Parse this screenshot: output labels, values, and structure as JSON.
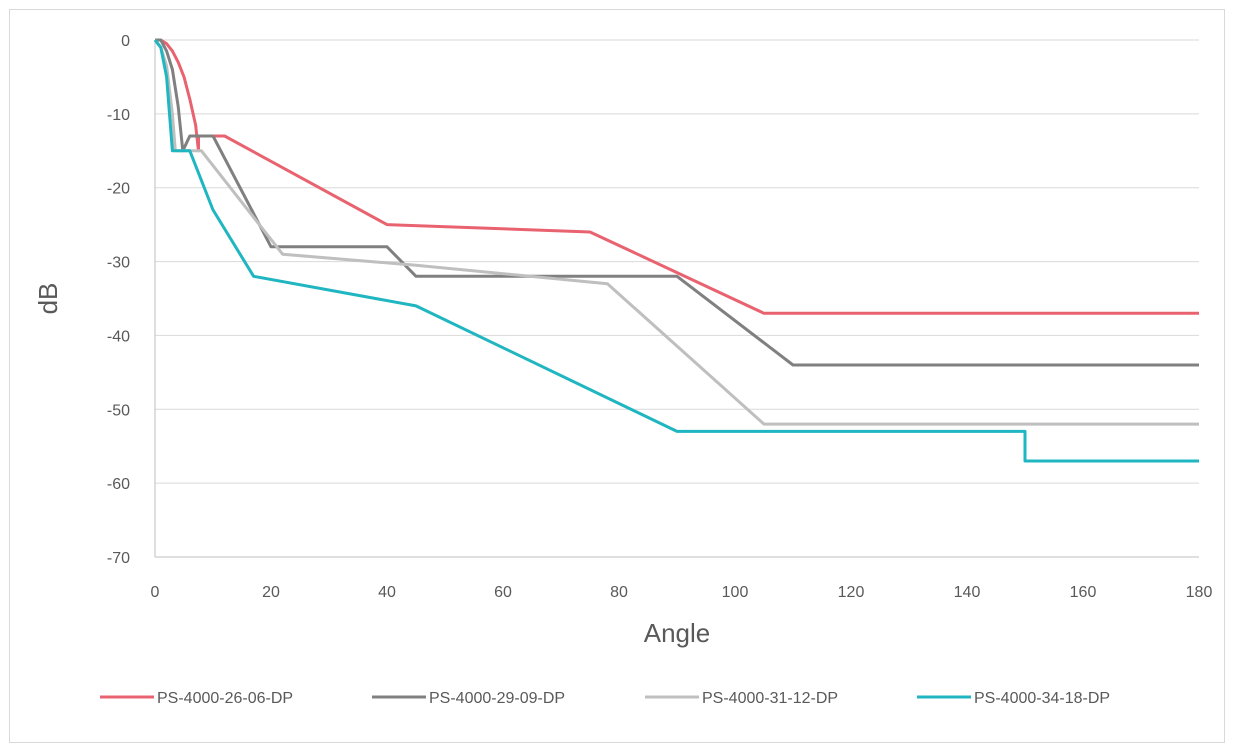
{
  "chart_data": {
    "type": "line",
    "title": "",
    "xlabel": "Angle",
    "ylabel": "dB",
    "xlim": [
      0,
      180
    ],
    "ylim": [
      -70,
      0
    ],
    "xticks": [
      0,
      20,
      40,
      60,
      80,
      100,
      120,
      140,
      160,
      180
    ],
    "yticks": [
      0,
      -10,
      -20,
      -30,
      -40,
      -50,
      -60,
      -70
    ],
    "grid": "horizontal",
    "legend": "bottom",
    "series": [
      {
        "name": "PS-4000-26-06-DP",
        "color": "#e8636f",
        "points": [
          [
            0,
            0
          ],
          [
            1,
            0
          ],
          [
            2,
            -0.5
          ],
          [
            3,
            -1.5
          ],
          [
            4,
            -3
          ],
          [
            5,
            -5
          ],
          [
            6,
            -8
          ],
          [
            7,
            -11.5
          ],
          [
            7.5,
            -15
          ],
          [
            7.5,
            -13
          ],
          [
            12,
            -13
          ],
          [
            40,
            -25
          ],
          [
            75,
            -26
          ],
          [
            90,
            -31.5
          ],
          [
            105,
            -37
          ],
          [
            180,
            -37
          ]
        ]
      },
      {
        "name": "PS-4000-29-09-DP",
        "color": "#808080",
        "points": [
          [
            0,
            0
          ],
          [
            1,
            0
          ],
          [
            2,
            -1.5
          ],
          [
            3,
            -4
          ],
          [
            4,
            -9
          ],
          [
            4.8,
            -15
          ],
          [
            6,
            -13
          ],
          [
            10,
            -13
          ],
          [
            20,
            -28
          ],
          [
            40,
            -28
          ],
          [
            45,
            -32
          ],
          [
            90,
            -32
          ],
          [
            110,
            -44
          ],
          [
            180,
            -44
          ]
        ]
      },
      {
        "name": "PS-4000-31-12-DP",
        "color": "#bfbfbf",
        "points": [
          [
            0,
            0
          ],
          [
            1,
            -1
          ],
          [
            2,
            -3.5
          ],
          [
            3,
            -10
          ],
          [
            3.5,
            -15
          ],
          [
            8,
            -15
          ],
          [
            22,
            -29
          ],
          [
            45,
            -30.5
          ],
          [
            78,
            -33
          ],
          [
            105,
            -52
          ],
          [
            180,
            -52
          ]
        ]
      },
      {
        "name": "PS-4000-34-18-DP",
        "color": "#1fb6c1",
        "points": [
          [
            0,
            0
          ],
          [
            1,
            -1
          ],
          [
            2,
            -5
          ],
          [
            3,
            -15
          ],
          [
            6,
            -15
          ],
          [
            10,
            -23
          ],
          [
            17,
            -32
          ],
          [
            45,
            -36
          ],
          [
            90,
            -53
          ],
          [
            150,
            -53
          ],
          [
            150,
            -57
          ],
          [
            180,
            -57
          ]
        ]
      }
    ]
  }
}
